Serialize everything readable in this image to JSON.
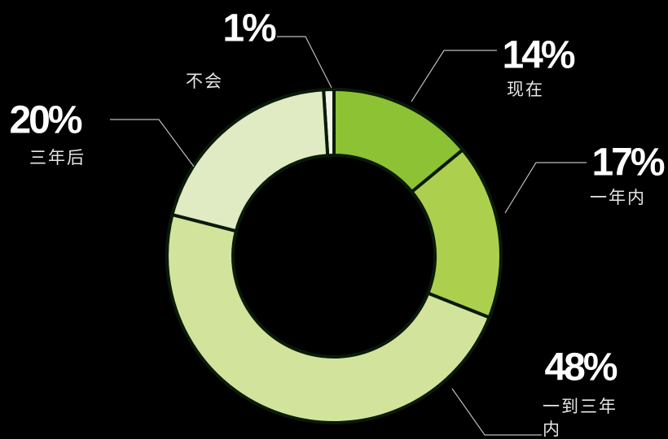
{
  "chart_data": {
    "type": "donut",
    "categories": [
      "不会",
      "现在",
      "一年内",
      "一到三年内",
      "三年后"
    ],
    "values": [
      1,
      14,
      17,
      48,
      20
    ],
    "value_labels": [
      "1%",
      "14%",
      "17%",
      "48%",
      "20%"
    ],
    "colors": [
      "#f2f5ea",
      "#8cc234",
      "#acd04e",
      "#d2e39c",
      "#e0ebc3"
    ]
  }
}
